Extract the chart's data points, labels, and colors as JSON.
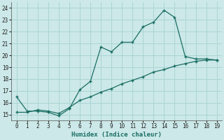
{
  "xlabel": "Humidex (Indice chaleur)",
  "bg_color": "#cce8e8",
  "grid_color": "#aad4d4",
  "line_color": "#1a6e64",
  "xlim": [
    -0.5,
    19.5
  ],
  "ylim": [
    14.5,
    24.5
  ],
  "xticks": [
    0,
    1,
    2,
    3,
    4,
    5,
    6,
    7,
    8,
    9,
    10,
    11,
    12,
    13,
    14,
    15,
    16,
    17,
    18,
    19
  ],
  "yticks": [
    15,
    16,
    17,
    18,
    19,
    20,
    21,
    22,
    23,
    24
  ],
  "line1_x": [
    0,
    1,
    2,
    3,
    4,
    5,
    6,
    7,
    8,
    9,
    10,
    11,
    12,
    13,
    14,
    15,
    16,
    17,
    18,
    19
  ],
  "line1_y": [
    16.5,
    15.3,
    15.3,
    15.2,
    14.9,
    15.5,
    17.1,
    17.8,
    20.7,
    20.3,
    21.1,
    21.1,
    22.4,
    22.8,
    23.8,
    23.2,
    19.9,
    19.7,
    19.7,
    19.6
  ],
  "line2_x": [
    0,
    1,
    2,
    3,
    4,
    5,
    6,
    7,
    8,
    9,
    10,
    11,
    12,
    13,
    14,
    15,
    16,
    17,
    18,
    19
  ],
  "line2_y": [
    15.2,
    15.2,
    15.4,
    15.3,
    15.1,
    15.6,
    16.2,
    16.5,
    16.9,
    17.2,
    17.6,
    17.9,
    18.2,
    18.6,
    18.8,
    19.1,
    19.3,
    19.5,
    19.6,
    19.6
  ]
}
